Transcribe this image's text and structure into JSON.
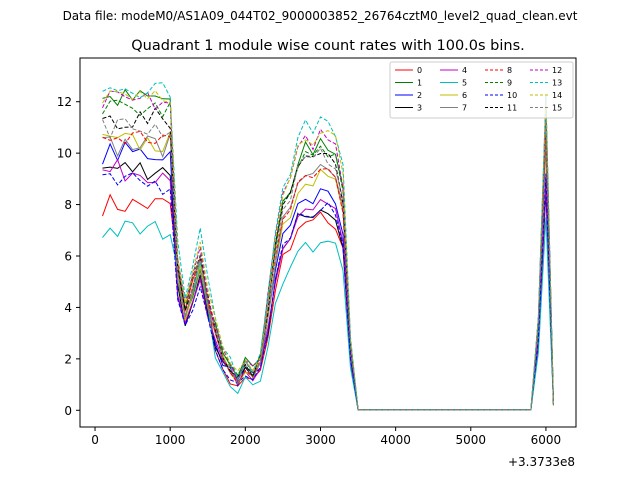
{
  "figure": {
    "suptitle": "Data file: modeM0/AS1A09_044T02_9000003852_26764cztM0_level2_quad_clean.evt"
  },
  "chart_data": {
    "type": "line",
    "title": "Quadrant 1 module wise count rates with 100.0s bins.",
    "xlabel": "",
    "ylabel": "",
    "x_offset_label": "+3.3733e8",
    "xlim": [
      -200,
      6400
    ],
    "ylim": [
      -0.65,
      13.7
    ],
    "xticks": [
      0,
      1000,
      2000,
      3000,
      4000,
      5000,
      6000
    ],
    "yticks": [
      0,
      2,
      4,
      6,
      8,
      10,
      12
    ],
    "x": [
      100,
      200,
      300,
      400,
      500,
      600,
      700,
      800,
      900,
      1000,
      1100,
      1200,
      1300,
      1400,
      1500,
      1600,
      1700,
      1800,
      1900,
      2000,
      2100,
      2200,
      2300,
      2400,
      2500,
      2600,
      2700,
      2800,
      2900,
      3000,
      3100,
      3200,
      3300,
      3400,
      3500,
      3600,
      3700,
      3800,
      3900,
      4000,
      4100,
      4200,
      4300,
      4400,
      4500,
      4600,
      4700,
      4800,
      4900,
      5000,
      5100,
      5200,
      5300,
      5400,
      5500,
      5600,
      5700,
      5800,
      5900,
      6000,
      6100
    ],
    "grid": false,
    "legend": {
      "position": "top-right",
      "columns": 4
    },
    "series": [
      {
        "name": "0",
        "color": "#ff0000",
        "dash": "solid",
        "base": 8.0,
        "mid": 6.0,
        "peak": 7.5,
        "spike": 10.6
      },
      {
        "name": "1",
        "color": "#008000",
        "dash": "solid",
        "base": 12.1,
        "mid": 5.4,
        "peak": 10.5,
        "spike": 11.9
      },
      {
        "name": "2",
        "color": "#0000ff",
        "dash": "solid",
        "base": 10.0,
        "mid": 5.0,
        "peak": 8.5,
        "spike": 9.0
      },
      {
        "name": "3",
        "color": "#000000",
        "dash": "solid",
        "base": 9.4,
        "mid": 5.2,
        "peak": 8.0,
        "spike": 8.5
      },
      {
        "name": "4",
        "color": "#c000c0",
        "dash": "solid",
        "base": 9.3,
        "mid": 5.0,
        "peak": 8.0,
        "spike": 8.8
      },
      {
        "name": "5",
        "color": "#00bfbf",
        "dash": "solid",
        "base": 7.0,
        "mid": 5.8,
        "peak": 6.6,
        "spike": 7.5
      },
      {
        "name": "6",
        "color": "#bfbf00",
        "dash": "solid",
        "base": 10.4,
        "mid": 5.7,
        "peak": 9.3,
        "spike": 10.2
      },
      {
        "name": "7",
        "color": "#808080",
        "dash": "solid",
        "base": 10.3,
        "mid": 5.6,
        "peak": 9.4,
        "spike": 10.4
      },
      {
        "name": "8",
        "color": "#ff0000",
        "dash": "dashed",
        "base": 10.6,
        "mid": 5.9,
        "peak": 9.6,
        "spike": 10.8
      },
      {
        "name": "9",
        "color": "#008000",
        "dash": "dashed",
        "base": 11.7,
        "mid": 6.1,
        "peak": 10.3,
        "spike": 11.5
      },
      {
        "name": "10",
        "color": "#0000ff",
        "dash": "dashed",
        "base": 8.8,
        "mid": 4.9,
        "peak": 8.0,
        "spike": 9.2
      },
      {
        "name": "11",
        "color": "#000000",
        "dash": "dashed",
        "base": 11.3,
        "mid": 6.0,
        "peak": 10.1,
        "spike": 11.7
      },
      {
        "name": "12",
        "color": "#c000c0",
        "dash": "dashed",
        "base": 12.0,
        "mid": 6.3,
        "peak": 10.8,
        "spike": 12.1
      },
      {
        "name": "13",
        "color": "#00bfbf",
        "dash": "dashed",
        "base": 12.6,
        "mid": 7.0,
        "peak": 11.4,
        "spike": 12.3
      },
      {
        "name": "14",
        "color": "#bfbf00",
        "dash": "dashed",
        "base": 12.4,
        "mid": 6.4,
        "peak": 11.0,
        "spike": 12.0
      },
      {
        "name": "15",
        "color": "#808080",
        "dash": "dashed",
        "base": 11.0,
        "mid": 5.8,
        "peak": 10.0,
        "spike": 11.4
      }
    ]
  }
}
